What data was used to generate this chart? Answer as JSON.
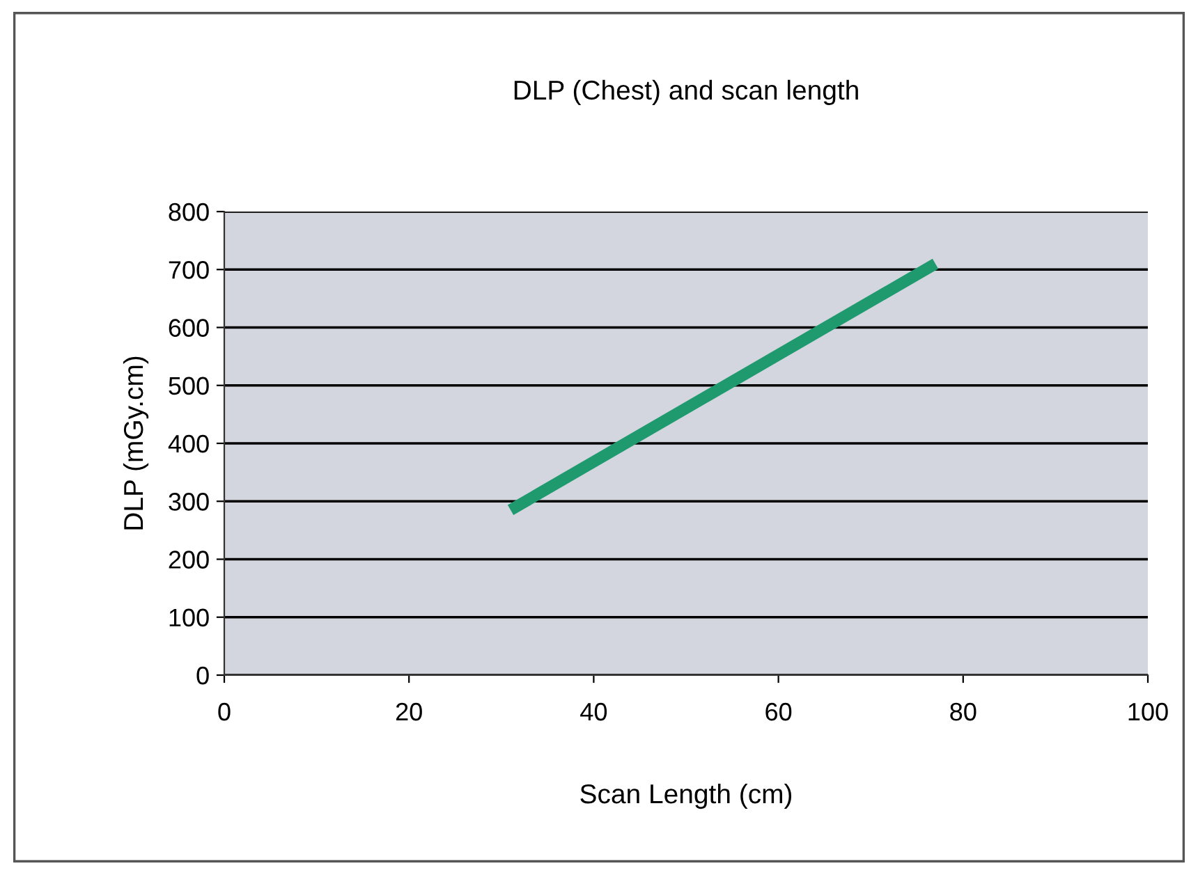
{
  "chart_data": {
    "type": "line",
    "title": "DLP (Chest) and scan length",
    "xlabel": "Scan Length (cm)",
    "ylabel": "DLP (mGy.cm)",
    "x": [
      31,
      77
    ],
    "series": [
      {
        "color": "#1f9a6e",
        "values": [
          285,
          710
        ]
      }
    ],
    "xlim": [
      0,
      100
    ],
    "xticks": [
      0,
      20,
      40,
      60,
      80,
      100
    ],
    "ylim": [
      0,
      800
    ],
    "yticks": [
      0,
      100,
      200,
      300,
      400,
      500,
      600,
      700,
      800
    ],
    "grid": "y",
    "legend": false,
    "marker": "none",
    "line_style": "solid"
  }
}
